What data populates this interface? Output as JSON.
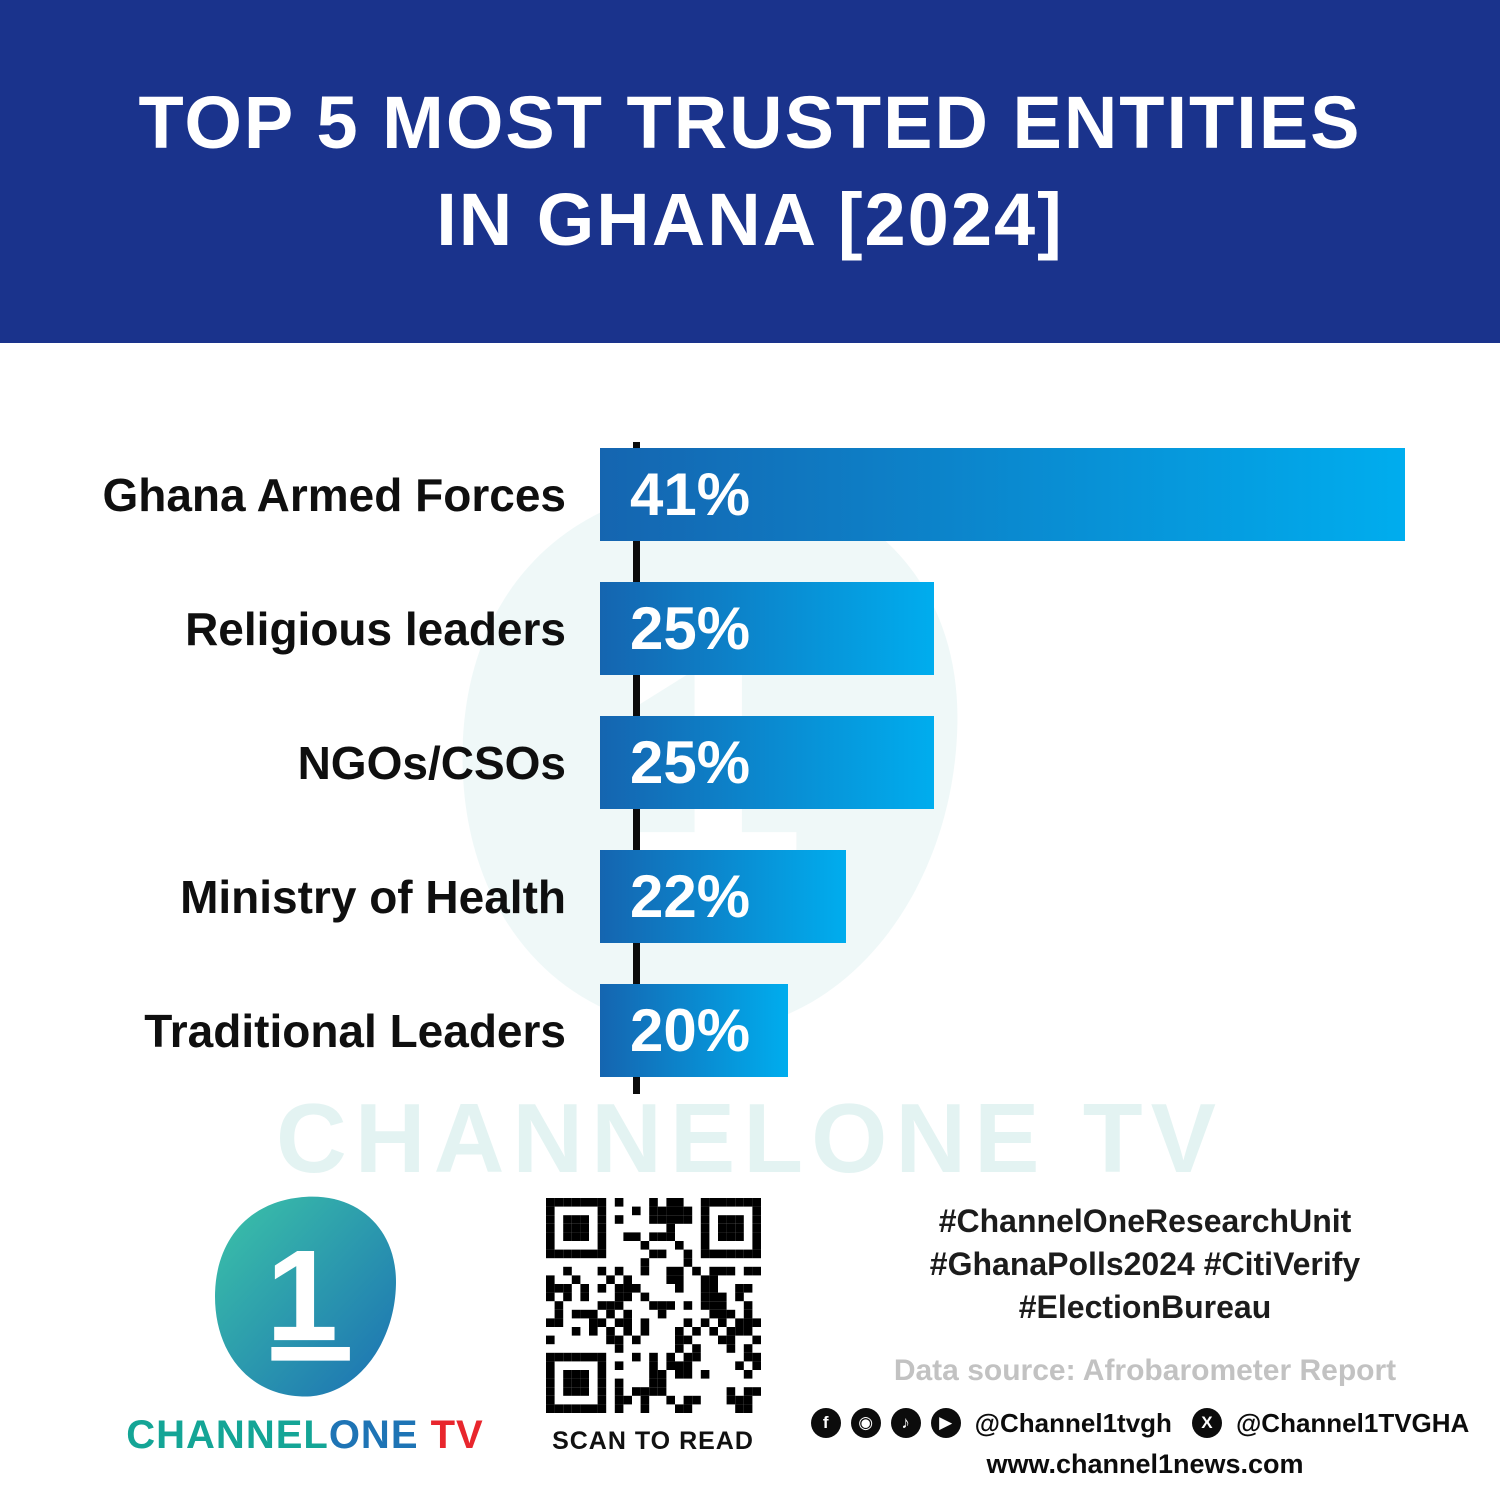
{
  "header": {
    "title_line1": "TOP 5 MOST TRUSTED ENTITIES",
    "title_line2": "IN GHANA [2024]"
  },
  "chart_data": {
    "type": "bar",
    "orientation": "horizontal",
    "title": "Top 5 Most Trusted Entities in Ghana [2024]",
    "categories": [
      "Ghana Armed Forces",
      "Religious leaders",
      "NGOs/CSOs",
      "Ministry of Health",
      "Traditional Leaders"
    ],
    "values": [
      41,
      25,
      25,
      22,
      20
    ],
    "value_labels": [
      "41%",
      "25%",
      "25%",
      "22%",
      "20%"
    ],
    "display_widths_pct": [
      100,
      41.5,
      41.5,
      30.5,
      23.3
    ],
    "xlim": [
      0,
      41
    ],
    "grid": false,
    "legend": false,
    "value_label_position": "inside-start"
  },
  "watermark": {
    "text": "CHANNELONE TV"
  },
  "footer": {
    "logo": {
      "one_glyph": "1",
      "brand_channel": "CHANNEL",
      "brand_one": "ONE",
      "brand_tv": " TV"
    },
    "qr_caption": "SCAN TO READ",
    "hashtags_line1": "#ChannelOneResearchUnit",
    "hashtags_line2": "#GhanaPolls2024 #CitiVerify",
    "hashtags_line3": "#ElectionBureau",
    "data_source": "Data source: Afrobarometer Report",
    "social_handle_1": "@Channel1tvgh",
    "social_handle_2": "@Channel1TVGHA",
    "website": "www.channel1news.com",
    "social_icons": {
      "facebook": "f",
      "instagram": "◉",
      "tiktok": "♪",
      "youtube": "▶",
      "x": "X"
    }
  },
  "colors": {
    "header_bg": "#1a338c",
    "bar_start": "#1565b0",
    "bar_end": "#00adee",
    "axis": "#0c0c0c",
    "accent_teal": "#14a596",
    "brand_blue": "#1e74b5",
    "brand_red": "#e8262d",
    "muted_gray": "#c2c2c2"
  }
}
